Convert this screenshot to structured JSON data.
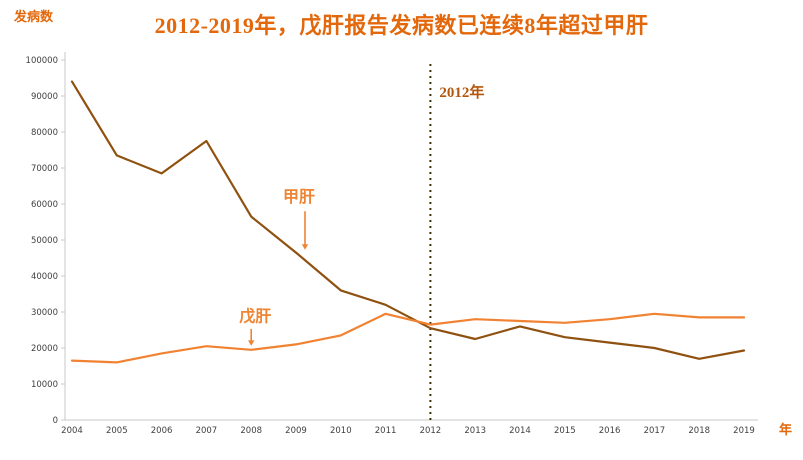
{
  "page": {
    "title": "2012-2019年，戊肝报告发病数已连续8年超过甲肝"
  },
  "chart_data": {
    "type": "line",
    "title": "2012-2019年，戊肝报告发病数已连续8年超过甲肝",
    "ylabel": "发病数",
    "xlabel": "年",
    "ylim": [
      0,
      100000
    ],
    "ytick_step": 10000,
    "grid": false,
    "legend_position": "inline-annotations",
    "axis_color": "#c9c9c9",
    "tick_label_color": "#3f3f3f",
    "categories": [
      "2004",
      "2005",
      "2006",
      "2007",
      "2008",
      "2009",
      "2010",
      "2011",
      "2012",
      "2013",
      "2014",
      "2015",
      "2016",
      "2017",
      "2018",
      "2019"
    ],
    "series": [
      {
        "key": "jiagan",
        "name": "甲肝",
        "color": "#8f5110",
        "values": [
          94000,
          73500,
          68500,
          77500,
          56500,
          46500,
          36000,
          32000,
          25500,
          22500,
          26000,
          23000,
          21500,
          20000,
          17000,
          19300
        ]
      },
      {
        "key": "wugan",
        "name": "戊肝",
        "color": "#f08232",
        "values": [
          16500,
          16000,
          18500,
          20500,
          19500,
          21000,
          23500,
          29500,
          26500,
          28000,
          27500,
          27000,
          28000,
          29500,
          28500,
          28500
        ]
      }
    ],
    "vline": {
      "x": "2012",
      "label": "2012年",
      "color": "#3f3000",
      "label_color": "#b5560a",
      "label_value": 89700
    },
    "annotations": [
      {
        "key": "jiagan-annotation",
        "text": "甲肝",
        "xi": 5,
        "dx": 3,
        "label_value": 60500,
        "arrow_dx": 6,
        "arrow_from": 58000,
        "arrow_to": 47300,
        "color": "#ef8432"
      },
      {
        "key": "wugan-annotation",
        "text": "戊肝",
        "xi": 4,
        "dx": 4,
        "label_value": 27300,
        "arrow_dx": -4,
        "arrow_from": 25300,
        "arrow_to": 20600,
        "color": "#ef8432"
      }
    ]
  }
}
